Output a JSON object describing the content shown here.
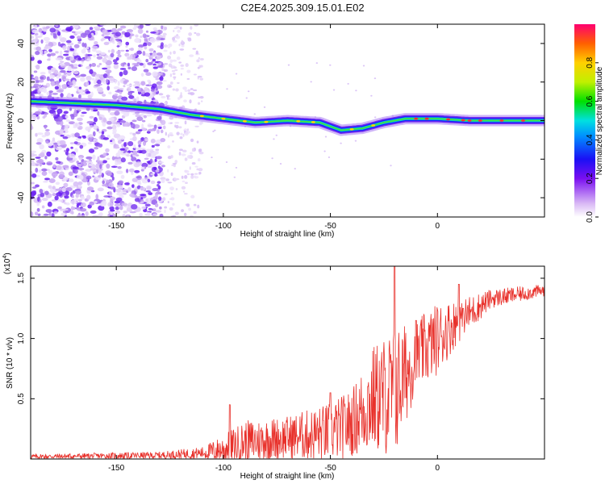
{
  "title": "C2E4.2025.309.15.01.E02",
  "chart_data": [
    {
      "type": "heatmap",
      "title": "C2E4.2025.309.15.01.E02",
      "xlabel": "Height of straight line (km)",
      "ylabel": "Frequency (Hz)",
      "xlim": [
        -190,
        50
      ],
      "ylim": [
        -50,
        50
      ],
      "xticks": [
        -150,
        -100,
        -50,
        0
      ],
      "yticks": [
        -40,
        -20,
        0,
        20,
        40
      ],
      "colorbar": {
        "label": "Normalized spectral amplitude",
        "range": [
          0,
          1
        ],
        "ticks": [
          "0.0",
          "0.2",
          "0.4",
          "0.6",
          "0.8"
        ],
        "tick_values": [
          0,
          0.2,
          0.4,
          0.6,
          0.8
        ]
      },
      "ridge": [
        {
          "x": -190,
          "y": 10
        },
        {
          "x": -170,
          "y": 9
        },
        {
          "x": -150,
          "y": 8
        },
        {
          "x": -130,
          "y": 6
        },
        {
          "x": -115,
          "y": 3
        },
        {
          "x": -100,
          "y": 1
        },
        {
          "x": -85,
          "y": -1
        },
        {
          "x": -70,
          "y": 0
        },
        {
          "x": -55,
          "y": -1
        },
        {
          "x": -45,
          "y": -5
        },
        {
          "x": -35,
          "y": -4
        },
        {
          "x": -25,
          "y": -1
        },
        {
          "x": -15,
          "y": 1
        },
        {
          "x": 0,
          "y": 1
        },
        {
          "x": 15,
          "y": 0
        },
        {
          "x": 30,
          "y": 0
        },
        {
          "x": 50,
          "y": 0
        }
      ]
    },
    {
      "type": "line",
      "xlabel": "Height of straight line (km)",
      "ylabel": "SNR (10 * v/v)",
      "y_scale_label": "(x10",
      "y_scale_exponent": "4",
      "xlim": [
        -190,
        50
      ],
      "ylim": [
        0,
        1.6
      ],
      "xticks": [
        -150,
        -100,
        -50,
        0
      ],
      "yticks": [
        0.5,
        1.0,
        1.5
      ],
      "ytick_labels": [
        "0.5",
        "1.0",
        "1.5"
      ],
      "color": "#e8302a",
      "series": [
        {
          "name": "SNR",
          "envelope": [
            {
              "x": -190,
              "base": 0.02,
              "amp": 0.02
            },
            {
              "x": -130,
              "base": 0.03,
              "amp": 0.03
            },
            {
              "x": -110,
              "base": 0.05,
              "amp": 0.05
            },
            {
              "x": -100,
              "base": 0.08,
              "amp": 0.12
            },
            {
              "x": -90,
              "base": 0.14,
              "amp": 0.18
            },
            {
              "x": -70,
              "base": 0.18,
              "amp": 0.18
            },
            {
              "x": -50,
              "base": 0.22,
              "amp": 0.25
            },
            {
              "x": -40,
              "base": 0.3,
              "amp": 0.28
            },
            {
              "x": -30,
              "base": 0.5,
              "amp": 0.45
            },
            {
              "x": -20,
              "base": 0.55,
              "amp": 0.55
            },
            {
              "x": -10,
              "base": 0.85,
              "amp": 0.3
            },
            {
              "x": 0,
              "base": 1.0,
              "amp": 0.3
            },
            {
              "x": 10,
              "base": 1.15,
              "amp": 0.18
            },
            {
              "x": 25,
              "base": 1.33,
              "amp": 0.08
            },
            {
              "x": 50,
              "base": 1.4,
              "amp": 0.05
            }
          ],
          "spikes": [
            {
              "x": -20,
              "y": 1.6
            },
            {
              "x": -10,
              "y": 1.15
            },
            {
              "x": 10,
              "y": 1.45
            },
            {
              "x": 12,
              "y": 1.25
            },
            {
              "x": -97,
              "y": 0.45
            },
            {
              "x": -50,
              "y": 0.55
            }
          ]
        }
      ]
    }
  ]
}
